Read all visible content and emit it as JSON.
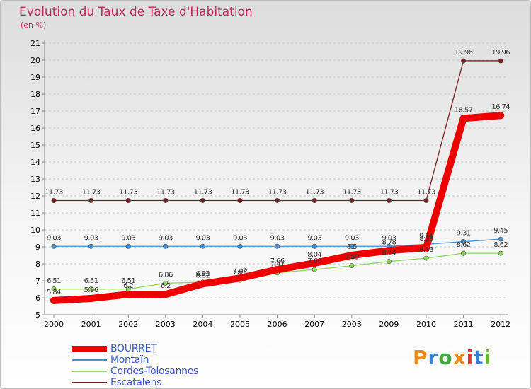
{
  "title": "Evolution du Taux de Taxe d'Habitation",
  "unit": "(en %)",
  "logo": {
    "text": "Proxiti",
    "colors": [
      "#f08c1e",
      "#3a7fd0",
      "#43a843",
      "#f08c1e",
      "#e23a2e",
      "#3a7fd0",
      "#6bb33a"
    ]
  },
  "chart_data": {
    "type": "line",
    "x": [
      "2000",
      "2001",
      "2002",
      "2003",
      "2004",
      "2005",
      "2006",
      "2007",
      "2008",
      "2009",
      "2010",
      "2011",
      "2012"
    ],
    "ylim": [
      5,
      21
    ],
    "yticks": [
      5,
      6,
      7,
      8,
      9,
      10,
      11,
      12,
      13,
      14,
      15,
      16,
      17,
      18,
      19,
      20,
      21
    ],
    "series": [
      {
        "name": "BOURRET",
        "color": "#ee0000",
        "values": [
          5.84,
          5.96,
          6.2,
          6.2,
          6.82,
          7.16,
          7.66,
          8.04,
          8.5,
          8.78,
          8.95,
          16.57,
          16.74
        ],
        "labels": [
          "5.84",
          "5.96",
          "6.2",
          "6.2",
          "6.82",
          "7.16",
          "7.66",
          "8.04",
          "8.5",
          "8.78",
          "8.95",
          "16.57",
          "16.74"
        ]
      },
      {
        "name": "Montaïn",
        "color": "#4a90c8",
        "values": [
          9.03,
          9.03,
          9.03,
          9.03,
          9.03,
          9.03,
          9.03,
          9.03,
          9.03,
          9.03,
          9.15,
          9.31,
          9.45
        ],
        "labels": [
          "9.03",
          "9.03",
          "9.03",
          "9.03",
          "9.03",
          "9.03",
          "9.03",
          "9.03",
          "9.03",
          "9.03",
          "9.15",
          "9.31",
          "9.45"
        ]
      },
      {
        "name": "Cordes-Tolosannes",
        "color": "#8ed65a",
        "values": [
          6.51,
          6.51,
          6.51,
          6.86,
          6.92,
          7.04,
          7.47,
          7.66,
          7.89,
          8.14,
          8.33,
          8.62,
          8.62
        ],
        "labels": [
          "6.51",
          "6.51",
          "6.51",
          "6.86",
          "6.92",
          "7.04",
          "7.47",
          "7.66",
          "7.89",
          "8.14",
          "8.33",
          "8.62",
          "8.62"
        ]
      },
      {
        "name": "Escatalens",
        "color": "#7a1e23",
        "values": [
          11.73,
          11.73,
          11.73,
          11.73,
          11.73,
          11.73,
          11.73,
          11.73,
          11.73,
          11.73,
          11.73,
          19.96,
          19.96
        ],
        "labels": [
          "11.73",
          "11.73",
          "11.73",
          "11.73",
          "11.73",
          "11.73",
          "11.73",
          "11.73",
          "11.73",
          "11.73",
          "11.73",
          "19.96",
          "19.96"
        ]
      }
    ]
  }
}
